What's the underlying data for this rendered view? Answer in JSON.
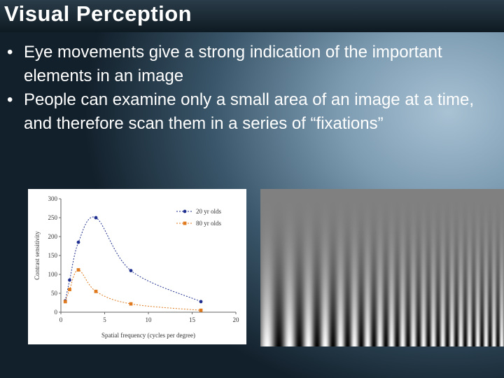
{
  "slide": {
    "title": "Visual Perception",
    "bullet_symbol": "•",
    "bullets": [
      "Eye movements give a strong indication of the important elements in an image",
      "People can examine only a small area of an image at a time, and therefore scan them in a series of “fixations”"
    ]
  },
  "chart_data": {
    "type": "line",
    "title": "",
    "xlabel": "Spatial frequency (cycles per degree)",
    "ylabel": "Contrast sensitivity",
    "xlim": [
      0,
      20
    ],
    "ylim": [
      0,
      300
    ],
    "xticks": [
      "0",
      "5",
      "10",
      "15",
      "20"
    ],
    "yticks": [
      "0",
      "50",
      "100",
      "150",
      "200",
      "250",
      "300"
    ],
    "grid": false,
    "legend_position": "top-right",
    "series": [
      {
        "name": "20 yr olds",
        "color": "#1f2f8f",
        "marker": "circle",
        "line_style": "dotted",
        "x": [
          0.5,
          1,
          2,
          4,
          8,
          16
        ],
        "y": [
          30,
          85,
          185,
          250,
          110,
          28
        ]
      },
      {
        "name": "80 yr olds",
        "color": "#e07a1f",
        "marker": "square",
        "line_style": "dotted",
        "x": [
          0.5,
          1,
          2,
          4,
          8,
          16
        ],
        "y": [
          28,
          60,
          112,
          55,
          22,
          5
        ]
      }
    ]
  },
  "colors": {
    "title_text": "#ffffff",
    "body_text": "#ffffff"
  },
  "icons": {
    "grating_image": "contrast-sensitivity-grating"
  }
}
